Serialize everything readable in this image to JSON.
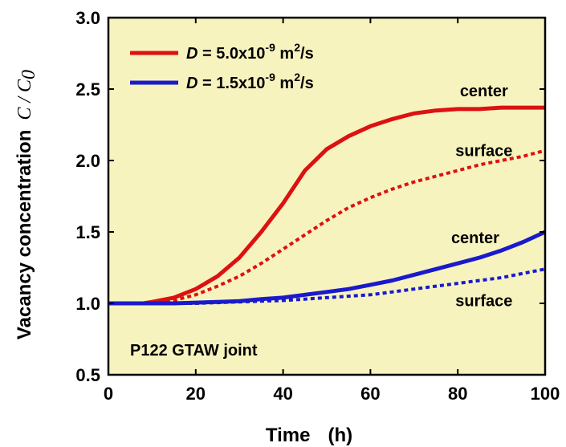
{
  "chart_data": {
    "type": "line",
    "title": "",
    "xlabel": "Time",
    "xlabel_unit": "(h)",
    "ylabel": "Vacancy concentration",
    "ylabel_symbol": "C / C",
    "ylabel_subscript": "0",
    "xlim": [
      0,
      100
    ],
    "ylim": [
      0.5,
      3.0
    ],
    "xticks": [
      0,
      20,
      40,
      60,
      80,
      100
    ],
    "yticks": [
      0.5,
      1.0,
      1.5,
      2.0,
      2.5,
      3.0
    ],
    "xtick_labels": [
      "0",
      "20",
      "40",
      "60",
      "80",
      "100"
    ],
    "ytick_labels": [
      "0.5",
      "1.0",
      "1.5",
      "2.0",
      "2.5",
      "3.0"
    ],
    "grid": false,
    "legend_position": "top-left",
    "background_color": "#f7f3bf",
    "inset_label": "P122 GTAW joint",
    "legend": [
      {
        "symbol": "D",
        "rest": " = 5.0x10",
        "exp": "-9",
        "unit": " m",
        "unit_exp": "2",
        "unit_tail": "/s",
        "color": "#dd1111"
      },
      {
        "symbol": "D",
        "rest": " = 1.5x10",
        "exp": "-9",
        "unit": " m",
        "unit_exp": "2",
        "unit_tail": "/s",
        "color": "#1a1acc"
      }
    ],
    "series": [
      {
        "label": "center",
        "diffusivity": "5.0x10-9",
        "color": "#dd1111",
        "style": "solid",
        "x": [
          0,
          5,
          8,
          10,
          15,
          20,
          25,
          30,
          35,
          40,
          45,
          50,
          55,
          60,
          65,
          70,
          75,
          80,
          85,
          90,
          95,
          100
        ],
        "y": [
          1.0,
          1.0,
          1.0,
          1.01,
          1.04,
          1.1,
          1.19,
          1.32,
          1.5,
          1.7,
          1.93,
          2.08,
          2.17,
          2.24,
          2.29,
          2.33,
          2.35,
          2.36,
          2.36,
          2.37,
          2.37,
          2.37
        ]
      },
      {
        "label": "surface",
        "diffusivity": "5.0x10-9",
        "color": "#dd1111",
        "style": "dashed",
        "x": [
          0,
          5,
          8,
          10,
          15,
          20,
          25,
          30,
          35,
          40,
          45,
          50,
          55,
          60,
          65,
          70,
          75,
          80,
          85,
          90,
          95,
          100
        ],
        "y": [
          1.0,
          1.0,
          1.0,
          1.0,
          1.02,
          1.06,
          1.12,
          1.19,
          1.28,
          1.38,
          1.48,
          1.58,
          1.67,
          1.74,
          1.8,
          1.85,
          1.89,
          1.93,
          1.97,
          2.0,
          2.03,
          2.07
        ]
      },
      {
        "label": "center",
        "diffusivity": "1.5x10-9",
        "color": "#1a1acc",
        "style": "solid",
        "x": [
          0,
          5,
          8,
          10,
          15,
          20,
          25,
          30,
          35,
          40,
          45,
          50,
          55,
          60,
          65,
          70,
          75,
          80,
          85,
          90,
          95,
          100
        ],
        "y": [
          1.0,
          1.0,
          1.0,
          1.0,
          1.0,
          1.005,
          1.01,
          1.015,
          1.03,
          1.04,
          1.06,
          1.08,
          1.1,
          1.13,
          1.16,
          1.2,
          1.24,
          1.28,
          1.32,
          1.37,
          1.43,
          1.5
        ]
      },
      {
        "label": "surface",
        "diffusivity": "1.5x10-9",
        "color": "#1a1acc",
        "style": "dashed",
        "x": [
          0,
          5,
          8,
          10,
          15,
          20,
          25,
          30,
          35,
          40,
          45,
          50,
          55,
          60,
          65,
          70,
          75,
          80,
          85,
          90,
          95,
          100
        ],
        "y": [
          1.0,
          1.0,
          1.0,
          1.0,
          1.0,
          1.0,
          1.005,
          1.01,
          1.015,
          1.02,
          1.03,
          1.04,
          1.05,
          1.06,
          1.08,
          1.1,
          1.12,
          1.14,
          1.16,
          1.18,
          1.21,
          1.24
        ]
      }
    ],
    "annotations": [
      {
        "text": "center",
        "x": 86,
        "y": 2.45
      },
      {
        "text": "surface",
        "x": 86,
        "y": 2.03
      },
      {
        "text": "center",
        "x": 84,
        "y": 1.42
      },
      {
        "text": "surface",
        "x": 86,
        "y": 0.98
      }
    ]
  }
}
